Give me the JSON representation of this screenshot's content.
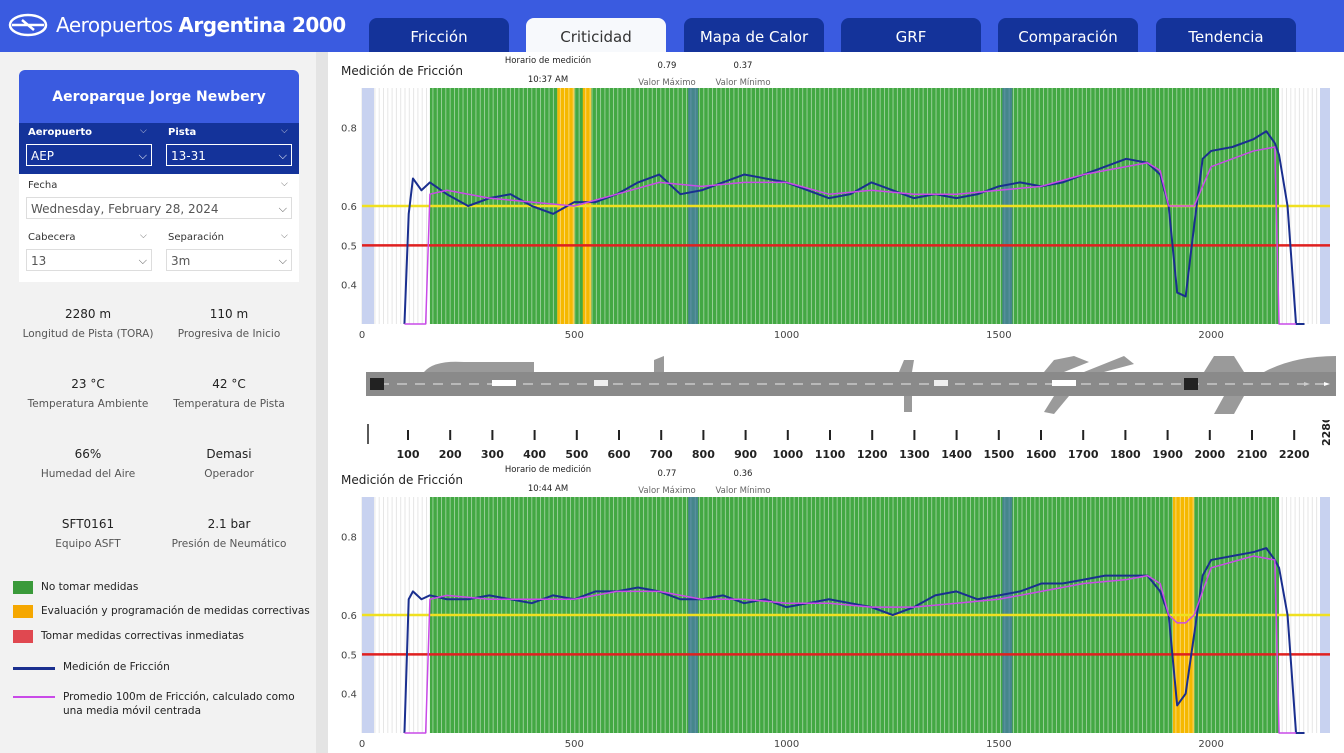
{
  "app": {
    "brand_light": "Aeropuertos",
    "brand_bold": "Argentina 2000"
  },
  "tabs": [
    {
      "label": "Fricción",
      "active": false
    },
    {
      "label": "Criticidad",
      "active": true
    },
    {
      "label": "Mapa de Calor",
      "active": false
    },
    {
      "label": "GRF",
      "active": false
    },
    {
      "label": "Comparación",
      "active": false
    },
    {
      "label": "Tendencia",
      "active": false
    }
  ],
  "filters": {
    "airport_name": "Aeroparque Jorge Newbery",
    "aeropuerto_label": "Aeropuerto",
    "aeropuerto_value": "AEP",
    "pista_label": "Pista",
    "pista_value": "13-31",
    "fecha_label": "Fecha",
    "fecha_value": "Wednesday, February 28, 2024",
    "cabecera_label": "Cabecera",
    "cabecera_value": "13",
    "separacion_label": "Separación",
    "separacion_value": "3m"
  },
  "stats": [
    {
      "value": "2280 m",
      "label": "Longitud de Pista (TORA)"
    },
    {
      "value": "110 m",
      "label": "Progresiva de Inicio"
    },
    {
      "value": "23 °C",
      "label": "Temperatura Ambiente"
    },
    {
      "value": "42 °C",
      "label": "Temperatura de Pista"
    },
    {
      "value": "66%",
      "label": "Humedad del Aire"
    },
    {
      "value": "Demasi",
      "label": "Operador"
    },
    {
      "value": "SFT0161",
      "label": "Equipo ASFT"
    },
    {
      "value": "2.1 bar",
      "label": "Presión de Neumático"
    }
  ],
  "legend": [
    {
      "label": "No tomar medidas",
      "color": "#3a9a3a",
      "kind": "box"
    },
    {
      "label": "Evaluación y programación de medidas correctivas",
      "color": "#f5a700",
      "kind": "box"
    },
    {
      "label": "Tomar medidas correctivas inmediatas",
      "color": "#e04850",
      "kind": "box"
    },
    {
      "label": "Medición de Fricción",
      "color": "#1a2f8f",
      "kind": "line"
    },
    {
      "label": "Promedio 100m de Fricción, calculado como una media móvil centrada",
      "color": "#c94ae8",
      "kind": "line"
    }
  ],
  "charts": [
    {
      "title": "Medición de Fricción",
      "horario_label": "Horario de medición",
      "horario_value": "10:37 AM",
      "max_value": "0.79",
      "max_label": "Valor Máximo",
      "min_value": "0.37",
      "min_label": "Valor Mínimo"
    },
    {
      "title": "Medición de Fricción",
      "horario_label": "Horario de medición",
      "horario_value": "10:44 AM",
      "max_value": "0.77",
      "max_label": "Valor Máximo",
      "min_value": "0.36",
      "min_label": "Valor Mínimo"
    }
  ],
  "scale": {
    "ticks": [
      "100",
      "200",
      "300",
      "400",
      "500",
      "600",
      "700",
      "800",
      "900",
      "1000",
      "1100",
      "1200",
      "1300",
      "1400",
      "1500",
      "1600",
      "1700",
      "1800",
      "1900",
      "2000",
      "2100",
      "2200"
    ],
    "end_label": "2280"
  },
  "chart_data": [
    {
      "type": "line",
      "title": "Medición de Fricción",
      "xlim": [
        0,
        2280
      ],
      "ylim": [
        0.3,
        0.9
      ],
      "x_ticks": [
        "0",
        "500",
        "1000",
        "1500",
        "2000"
      ],
      "y_ticks": [
        "0.4",
        "0.5",
        "0.6",
        "0.8"
      ],
      "thresholds": [
        {
          "value": 0.6,
          "color": "#f0e020"
        },
        {
          "value": 0.5,
          "color": "#e02020"
        }
      ],
      "bands": [
        {
          "from": 160,
          "to": 2160,
          "status": "No tomar medidas"
        },
        {
          "from": 460,
          "to": 500,
          "status": "Evaluación y programación de medidas correctivas"
        },
        {
          "from": 520,
          "to": 540,
          "status": "Evaluación y programación de medidas correctivas"
        }
      ],
      "series": [
        {
          "name": "Medición de Fricción",
          "x": [
            100,
            110,
            120,
            140,
            160,
            200,
            250,
            300,
            350,
            400,
            450,
            500,
            550,
            600,
            650,
            700,
            750,
            800,
            850,
            900,
            950,
            1000,
            1050,
            1100,
            1150,
            1200,
            1250,
            1300,
            1350,
            1400,
            1450,
            1500,
            1550,
            1600,
            1650,
            1700,
            1750,
            1800,
            1850,
            1880,
            1900,
            1920,
            1940,
            1960,
            1980,
            2000,
            2050,
            2100,
            2130,
            2150,
            2160,
            2180,
            2200,
            2220
          ],
          "values": [
            0.3,
            0.58,
            0.67,
            0.64,
            0.66,
            0.63,
            0.6,
            0.62,
            0.63,
            0.6,
            0.58,
            0.61,
            0.61,
            0.63,
            0.66,
            0.68,
            0.63,
            0.64,
            0.66,
            0.68,
            0.67,
            0.66,
            0.64,
            0.62,
            0.63,
            0.66,
            0.64,
            0.62,
            0.63,
            0.62,
            0.63,
            0.65,
            0.66,
            0.65,
            0.66,
            0.68,
            0.7,
            0.72,
            0.71,
            0.68,
            0.6,
            0.38,
            0.37,
            0.55,
            0.72,
            0.74,
            0.75,
            0.77,
            0.79,
            0.76,
            0.73,
            0.6,
            0.3,
            0.3
          ]
        },
        {
          "name": "Promedio 100m de Fricción, calculado como una media móvil centrada",
          "x": [
            100,
            150,
            160,
            200,
            300,
            400,
            500,
            600,
            700,
            800,
            900,
            1000,
            1100,
            1200,
            1300,
            1400,
            1500,
            1600,
            1700,
            1800,
            1850,
            1880,
            1900,
            1920,
            1940,
            1960,
            1980,
            2000,
            2100,
            2150,
            2160,
            2200
          ],
          "values": [
            0.3,
            0.3,
            0.63,
            0.64,
            0.62,
            0.61,
            0.6,
            0.63,
            0.66,
            0.65,
            0.66,
            0.66,
            0.63,
            0.64,
            0.63,
            0.63,
            0.64,
            0.65,
            0.68,
            0.7,
            0.71,
            0.69,
            0.6,
            0.6,
            0.6,
            0.6,
            0.65,
            0.7,
            0.74,
            0.75,
            0.3,
            0.3
          ]
        }
      ]
    },
    {
      "type": "line",
      "title": "Medición de Fricción",
      "xlim": [
        0,
        2280
      ],
      "ylim": [
        0.3,
        0.9
      ],
      "x_ticks": [
        "0",
        "500",
        "1000",
        "1500",
        "2000"
      ],
      "y_ticks": [
        "0.4",
        "0.5",
        "0.6",
        "0.8"
      ],
      "thresholds": [
        {
          "value": 0.6,
          "color": "#f0e020"
        },
        {
          "value": 0.5,
          "color": "#e02020"
        }
      ],
      "bands": [
        {
          "from": 160,
          "to": 2160,
          "status": "No tomar medidas"
        },
        {
          "from": 1910,
          "to": 1960,
          "status": "Evaluación y programación de medidas correctivas"
        }
      ],
      "series": [
        {
          "name": "Medición de Fricción",
          "x": [
            100,
            110,
            120,
            140,
            160,
            200,
            250,
            300,
            350,
            400,
            450,
            500,
            550,
            600,
            650,
            700,
            750,
            800,
            850,
            900,
            950,
            1000,
            1050,
            1100,
            1150,
            1200,
            1250,
            1300,
            1350,
            1400,
            1450,
            1500,
            1550,
            1600,
            1650,
            1700,
            1750,
            1800,
            1850,
            1880,
            1900,
            1920,
            1940,
            1960,
            1980,
            2000,
            2050,
            2100,
            2130,
            2150,
            2160,
            2180,
            2200,
            2220
          ],
          "values": [
            0.3,
            0.64,
            0.66,
            0.64,
            0.65,
            0.64,
            0.64,
            0.65,
            0.64,
            0.63,
            0.65,
            0.64,
            0.66,
            0.66,
            0.67,
            0.66,
            0.64,
            0.64,
            0.65,
            0.63,
            0.64,
            0.62,
            0.63,
            0.64,
            0.63,
            0.62,
            0.6,
            0.62,
            0.65,
            0.66,
            0.64,
            0.65,
            0.66,
            0.68,
            0.68,
            0.69,
            0.7,
            0.7,
            0.7,
            0.66,
            0.6,
            0.37,
            0.4,
            0.55,
            0.7,
            0.74,
            0.75,
            0.76,
            0.77,
            0.74,
            0.72,
            0.6,
            0.3,
            0.3
          ]
        },
        {
          "name": "Promedio 100m de Fricción, calculado como una media móvil centrada",
          "x": [
            100,
            150,
            160,
            200,
            300,
            400,
            500,
            600,
            700,
            800,
            900,
            1000,
            1100,
            1200,
            1300,
            1400,
            1500,
            1600,
            1700,
            1800,
            1850,
            1880,
            1900,
            1920,
            1940,
            1960,
            1980,
            2000,
            2100,
            2150,
            2160,
            2200
          ],
          "values": [
            0.3,
            0.3,
            0.64,
            0.65,
            0.64,
            0.64,
            0.64,
            0.66,
            0.66,
            0.64,
            0.64,
            0.63,
            0.63,
            0.62,
            0.62,
            0.63,
            0.64,
            0.66,
            0.68,
            0.69,
            0.7,
            0.68,
            0.6,
            0.58,
            0.58,
            0.6,
            0.66,
            0.72,
            0.75,
            0.74,
            0.3,
            0.3
          ]
        }
      ]
    }
  ]
}
